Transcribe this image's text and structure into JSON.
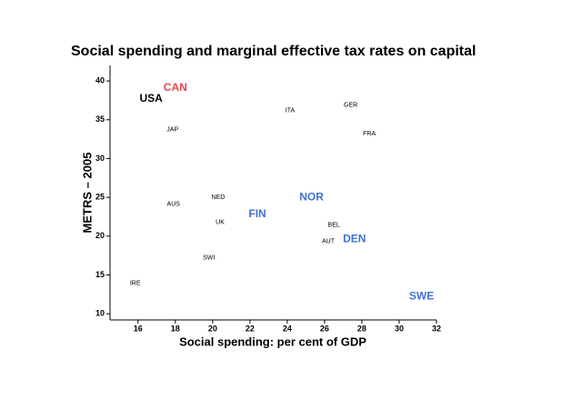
{
  "chart_data": {
    "type": "scatter",
    "title": "Social spending and marginal effective tax rates on capital",
    "x_label": "Social spending: per cent of GDP",
    "y_label": "METRS – 2005",
    "labels": [
      "CAN",
      "USA",
      "JAP",
      "ITA",
      "GER",
      "FRA",
      "NED",
      "AUS",
      "NOR",
      "FIN",
      "UK",
      "BEL",
      "AUT",
      "DEN",
      "SWI",
      "IRE",
      "SWE"
    ],
    "x": [
      18.0,
      16.7,
      17.85,
      24.15,
      27.4,
      28.4,
      20.3,
      17.9,
      25.3,
      22.4,
      20.4,
      26.5,
      26.2,
      27.6,
      19.8,
      15.85,
      31.2
    ],
    "y": [
      39.1,
      37.7,
      33.7,
      36.2,
      36.9,
      33.2,
      25.0,
      24.1,
      25.0,
      22.8,
      21.8,
      21.4,
      19.3,
      19.6,
      17.2,
      13.9,
      12.2
    ],
    "colors": [
      "#e8474c",
      "#000000",
      "#000000",
      "#000000",
      "#000000",
      "#000000",
      "#000000",
      "#000000",
      "#3f73d6",
      "#3f73d6",
      "#000000",
      "#000000",
      "#000000",
      "#3f73d6",
      "#000000",
      "#000000",
      "#3f73d6"
    ],
    "bold": [
      true,
      true,
      false,
      false,
      false,
      false,
      false,
      false,
      true,
      true,
      false,
      false,
      false,
      true,
      false,
      false,
      true
    ],
    "xlim": [
      14.5,
      32
    ],
    "ylim": [
      9.2,
      42
    ],
    "xticks": [
      16,
      18,
      20,
      22,
      24,
      26,
      28,
      30,
      32
    ],
    "yticks": [
      10,
      15,
      20,
      25,
      30,
      35,
      40
    ]
  }
}
